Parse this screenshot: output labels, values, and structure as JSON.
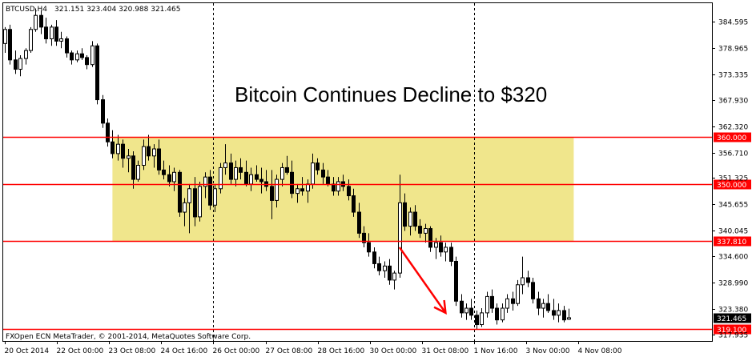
{
  "header": {
    "symbol": "BTCUSD,H4",
    "ohlc": "321.151 323.404 320.988 321.465"
  },
  "footer": {
    "copyright": "FXOpen ECN MetaTrader, © 2001-2014, MetaQuotes Software Corp."
  },
  "colors": {
    "bull_body": "#ffffff",
    "bear_body": "#000000",
    "candle_outline": "#000000",
    "level_line": "#ff0000",
    "zone_fill": "#f0e68c",
    "arrow": "#ff0000",
    "grid": "#000000"
  },
  "chart_data": {
    "type": "candlestick",
    "title": "Bitcoin Continues Decline to $320",
    "y_ticks": [
      "384.595",
      "378.965",
      "373.335",
      "367.930",
      "362.320",
      "356.710",
      "351.325",
      "345.655",
      "340.045",
      "334.600",
      "328.990",
      "323.380",
      "317.935"
    ],
    "ylim": [
      316.5,
      388.6
    ],
    "x_ticks": [
      "20 Oct 2014",
      "22 Oct 00:00",
      "23 Oct 08:00",
      "24 Oct 16:00",
      "26 Oct 00:00",
      "27 Oct 08:00",
      "28 Oct 16:00",
      "30 Oct 00:00",
      "31 Oct 08:00",
      "1 Nov 16:00",
      "3 Nov 00:00",
      "4 Nov 08:00"
    ],
    "period_separators": [
      "26 Oct 00:00",
      "1 Nov 16:00"
    ],
    "levels": [
      {
        "label": "360.000",
        "value": 360.0
      },
      {
        "label": "350.000",
        "value": 350.0
      },
      {
        "label": "337.810",
        "value": 337.81
      },
      {
        "label": "319.100",
        "value": 319.1
      }
    ],
    "current_price_label": "321.465",
    "zone": {
      "from_bar": 21,
      "to_bar": 111,
      "low": 337.81,
      "high": 360.0
    },
    "arrow": {
      "from_bar": 77,
      "from_price": 336.5,
      "to_bar": 86,
      "to_price": 322.5
    },
    "candles": [
      [
        380.0,
        383.5,
        378.0,
        383.0
      ],
      [
        383.0,
        384.0,
        375.5,
        376.5
      ],
      [
        376.5,
        378.5,
        373.5,
        374.5
      ],
      [
        374.5,
        377.5,
        373.0,
        376.8
      ],
      [
        376.8,
        379.0,
        375.5,
        378.5
      ],
      [
        378.5,
        383.5,
        378.0,
        383.0
      ],
      [
        383.0,
        387.5,
        382.5,
        386.0
      ],
      [
        386.0,
        387.0,
        382.0,
        383.5
      ],
      [
        383.5,
        385.5,
        380.0,
        381.0
      ],
      [
        381.0,
        384.0,
        379.5,
        383.5
      ],
      [
        383.5,
        385.0,
        379.5,
        380.5
      ],
      [
        380.5,
        382.5,
        379.0,
        381.0
      ],
      [
        381.0,
        381.5,
        377.0,
        378.0
      ],
      [
        378.0,
        378.5,
        375.5,
        376.5
      ],
      [
        376.5,
        378.5,
        376.0,
        377.8
      ],
      [
        377.8,
        379.0,
        376.5,
        377.0
      ],
      [
        377.0,
        377.5,
        374.5,
        375.5
      ],
      [
        375.5,
        380.5,
        375.0,
        379.5
      ],
      [
        379.5,
        380.0,
        367.0,
        368.0
      ],
      [
        368.0,
        369.0,
        362.0,
        363.0
      ],
      [
        363.0,
        364.0,
        358.0,
        359.0
      ],
      [
        359.0,
        361.5,
        355.5,
        356.5
      ],
      [
        356.5,
        360.5,
        355.0,
        358.5
      ],
      [
        358.5,
        359.5,
        353.5,
        355.5
      ],
      [
        355.5,
        357.5,
        352.5,
        356.0
      ],
      [
        356.0,
        357.0,
        349.0,
        351.0
      ],
      [
        351.0,
        355.0,
        350.5,
        354.0
      ],
      [
        354.0,
        359.5,
        353.0,
        358.0
      ],
      [
        358.0,
        360.5,
        355.0,
        356.0
      ],
      [
        356.0,
        358.5,
        353.5,
        357.5
      ],
      [
        357.5,
        359.5,
        352.0,
        353.0
      ],
      [
        353.0,
        355.0,
        351.0,
        352.0
      ],
      [
        352.0,
        354.0,
        349.5,
        350.5
      ],
      [
        350.5,
        353.5,
        348.5,
        352.5
      ],
      [
        352.5,
        353.0,
        343.0,
        344.0
      ],
      [
        344.0,
        347.0,
        341.0,
        346.0
      ],
      [
        346.0,
        350.0,
        339.5,
        349.0
      ],
      [
        349.0,
        351.5,
        341.0,
        343.0
      ],
      [
        343.0,
        350.5,
        342.0,
        349.5
      ],
      [
        349.5,
        352.5,
        347.0,
        351.5
      ],
      [
        351.5,
        353.0,
        344.5,
        345.5
      ],
      [
        345.5,
        350.0,
        344.0,
        349.0
      ],
      [
        349.0,
        354.5,
        348.0,
        353.5
      ],
      [
        353.5,
        358.5,
        352.0,
        354.5
      ],
      [
        354.5,
        356.5,
        350.0,
        351.0
      ],
      [
        351.0,
        355.0,
        349.5,
        353.5
      ],
      [
        353.5,
        355.5,
        351.0,
        352.5
      ],
      [
        352.5,
        355.0,
        349.5,
        350.0
      ],
      [
        350.0,
        353.5,
        348.5,
        352.0
      ],
      [
        352.0,
        354.0,
        350.5,
        351.0
      ],
      [
        351.0,
        353.5,
        348.0,
        350.5
      ],
      [
        350.5,
        353.0,
        348.5,
        349.5
      ],
      [
        349.5,
        353.0,
        342.5,
        346.5
      ],
      [
        346.5,
        352.0,
        345.0,
        351.0
      ],
      [
        351.0,
        354.5,
        349.5,
        353.5
      ],
      [
        353.5,
        356.0,
        352.0,
        352.5
      ],
      [
        352.5,
        355.0,
        347.0,
        348.0
      ],
      [
        348.0,
        350.0,
        346.0,
        349.0
      ],
      [
        349.0,
        351.5,
        347.5,
        348.5
      ],
      [
        348.5,
        351.0,
        346.0,
        350.0
      ],
      [
        350.0,
        356.5,
        349.0,
        354.5
      ],
      [
        354.5,
        355.5,
        352.0,
        353.0
      ],
      [
        353.0,
        354.5,
        350.0,
        351.5
      ],
      [
        351.5,
        353.0,
        349.5,
        350.0
      ],
      [
        350.0,
        351.5,
        347.5,
        348.5
      ],
      [
        348.5,
        351.5,
        347.5,
        350.5
      ],
      [
        350.5,
        352.0,
        348.5,
        349.5
      ],
      [
        349.5,
        351.0,
        346.5,
        347.5
      ],
      [
        347.5,
        349.0,
        343.0,
        344.0
      ],
      [
        344.0,
        346.0,
        338.5,
        339.5
      ],
      [
        339.5,
        341.0,
        336.5,
        337.5
      ],
      [
        337.5,
        339.5,
        334.5,
        335.5
      ],
      [
        335.5,
        336.5,
        332.0,
        333.0
      ],
      [
        333.0,
        334.5,
        330.5,
        331.5
      ],
      [
        331.5,
        333.5,
        330.0,
        332.5
      ],
      [
        332.5,
        334.0,
        328.5,
        329.5
      ],
      [
        329.5,
        331.5,
        327.5,
        331.0
      ],
      [
        331.0,
        352.0,
        330.0,
        346.0
      ],
      [
        346.0,
        348.0,
        340.0,
        341.0
      ],
      [
        341.0,
        345.0,
        339.0,
        344.0
      ],
      [
        344.0,
        345.5,
        340.0,
        341.0
      ],
      [
        341.0,
        342.5,
        338.5,
        339.5
      ],
      [
        339.5,
        341.5,
        337.5,
        340.5
      ],
      [
        340.5,
        341.0,
        335.5,
        336.5
      ],
      [
        336.5,
        338.5,
        334.0,
        337.5
      ],
      [
        337.5,
        339.0,
        334.5,
        335.5
      ],
      [
        335.5,
        337.5,
        333.5,
        336.5
      ],
      [
        336.5,
        337.5,
        332.5,
        333.5
      ],
      [
        333.5,
        334.5,
        324.0,
        325.0
      ],
      [
        325.0,
        326.5,
        321.5,
        322.5
      ],
      [
        322.5,
        324.5,
        321.0,
        323.5
      ],
      [
        323.5,
        325.5,
        321.0,
        322.0
      ],
      [
        322.0,
        323.0,
        319.0,
        320.0
      ],
      [
        320.0,
        323.5,
        319.5,
        322.5
      ],
      [
        322.5,
        327.0,
        321.5,
        326.0
      ],
      [
        326.0,
        327.5,
        322.5,
        323.5
      ],
      [
        323.5,
        324.5,
        320.0,
        321.0
      ],
      [
        321.0,
        324.5,
        320.5,
        323.5
      ],
      [
        323.5,
        326.5,
        322.5,
        325.5
      ],
      [
        325.5,
        327.0,
        323.0,
        324.5
      ],
      [
        324.5,
        329.5,
        324.0,
        328.5
      ],
      [
        328.5,
        334.5,
        326.5,
        330.0
      ],
      [
        330.0,
        331.5,
        328.0,
        329.0
      ],
      [
        329.0,
        330.0,
        324.5,
        325.5
      ],
      [
        325.5,
        327.0,
        322.0,
        323.5
      ],
      [
        323.5,
        325.5,
        321.5,
        324.5
      ],
      [
        324.5,
        326.5,
        322.5,
        323.0
      ],
      [
        323.0,
        325.5,
        321.0,
        322.0
      ],
      [
        322.0,
        324.5,
        320.5,
        323.0
      ],
      [
        323.0,
        324.0,
        320.5,
        321.0
      ],
      [
        321.151,
        323.404,
        320.988,
        321.465
      ]
    ]
  }
}
